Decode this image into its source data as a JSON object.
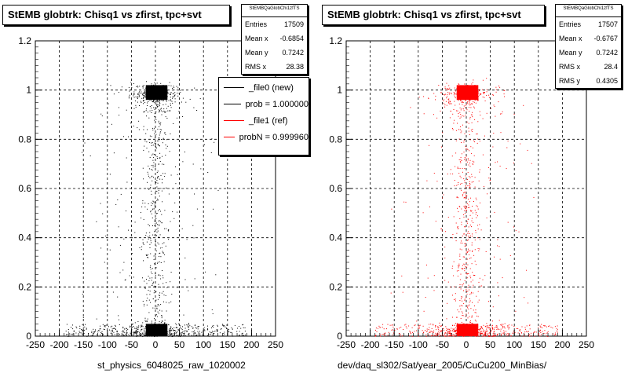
{
  "chart_data": [
    {
      "type": "scatter",
      "title": "StEMB globtrk: Chisq1 vs zfirst, tpc+svt",
      "xlabel": "st_physics_6048025_raw_1020002",
      "ylabel": "",
      "xlim": [
        -250,
        250
      ],
      "ylim": [
        0,
        1.2
      ],
      "xticks": [
        -250,
        -200,
        -150,
        -100,
        -50,
        0,
        50,
        100,
        150,
        200,
        250
      ],
      "yticks": [
        0,
        0.2,
        0.4,
        0.6,
        0.8,
        1,
        1.2
      ],
      "grid": true,
      "color": "#000000",
      "dense_regions": [
        {
          "x": [
            -20,
            25
          ],
          "y": [
            0.96,
            1.02
          ]
        },
        {
          "x": [
            -20,
            25
          ],
          "y": [
            0.0,
            0.05
          ]
        }
      ],
      "stats": {
        "name": "StEMBQaGlobChi1zfTS",
        "rows": [
          {
            "label": "Entries",
            "value": "17509"
          },
          {
            "label": "Mean x",
            "value": "-0.6854"
          },
          {
            "label": "Mean y",
            "value": "0.7242"
          },
          {
            "label": "RMS x",
            "value": "28.38"
          }
        ]
      },
      "legend": {
        "placement": "top-right",
        "entries": [
          {
            "label": "_file0 (new)",
            "color": "#000000"
          },
          {
            "label": "prob = 1.000000",
            "color": "#000000"
          },
          {
            "label": "_file1 (ref)",
            "color": "#ff0000"
          },
          {
            "label": "probN = 0.999960",
            "color": "#ff0000"
          }
        ]
      }
    },
    {
      "type": "scatter",
      "title": "StEMB globtrk: Chisq1 vs zfirst, tpc+svt",
      "xlabel": "dev/daq_sl302/Sat/year_2005/CuCu200_MinBias/",
      "ylabel": "",
      "xlim": [
        -250,
        250
      ],
      "ylim": [
        0,
        1.2
      ],
      "xticks": [
        -250,
        -200,
        -150,
        -100,
        -50,
        0,
        50,
        100,
        150,
        200,
        250
      ],
      "yticks": [
        0,
        0.2,
        0.4,
        0.6,
        0.8,
        1,
        1.2
      ],
      "grid": true,
      "color": "#ff0000",
      "dense_regions": [
        {
          "x": [
            -20,
            25
          ],
          "y": [
            0.96,
            1.02
          ]
        },
        {
          "x": [
            -20,
            25
          ],
          "y": [
            0.0,
            0.05
          ]
        }
      ],
      "stats": {
        "name": "StEMBQaGlobChi1zfTS",
        "rows": [
          {
            "label": "Entries",
            "value": "17507"
          },
          {
            "label": "Mean x",
            "value": "-0.6767"
          },
          {
            "label": "Mean y",
            "value": "0.7242"
          },
          {
            "label": "RMS x",
            "value": "28.4"
          },
          {
            "label": "RMS y",
            "value": "0.4305"
          }
        ]
      }
    }
  ]
}
